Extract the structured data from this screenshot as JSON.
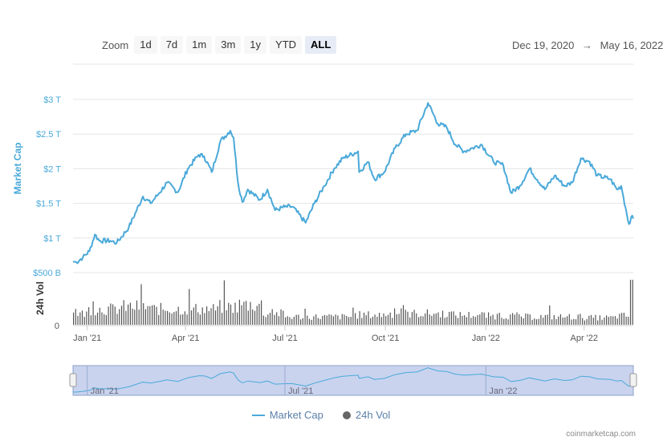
{
  "zoom": {
    "label": "Zoom",
    "buttons": [
      "1d",
      "7d",
      "1m",
      "3m",
      "1y",
      "YTD",
      "ALL"
    ],
    "active": "ALL"
  },
  "range": {
    "from": "Dec 19, 2020",
    "arrow": "→",
    "to": "May 16, 2022"
  },
  "legend": {
    "market_cap": "Market Cap",
    "volume": "24h Vol"
  },
  "credit": "coinmarketcap.com",
  "colors": {
    "market_cap": "#4aa9d9",
    "volume": "#555555",
    "navigator_fill": "#c9d3ee"
  },
  "chart_data": [
    {
      "type": "line",
      "title": "",
      "xlabel": "",
      "ylabel": "Market Cap",
      "x_tick_labels": [
        "Jan '21",
        "Apr '21",
        "Jul '21",
        "Oct '21",
        "Jan '22",
        "Apr '22"
      ],
      "y_tick_labels": [
        "$500 B",
        "$1 T",
        "$1.5 T",
        "$2 T",
        "$2.5 T",
        "$3 T"
      ],
      "y_ticks": [
        500,
        1000,
        1500,
        2000,
        2500,
        3000
      ],
      "ylim": [
        500,
        3000
      ],
      "xlim": [
        "2020-12-19",
        "2022-05-16"
      ],
      "series": [
        {
          "name": "Market Cap",
          "unit": "USD billions",
          "points": [
            [
              "2020-12-19",
              660
            ],
            [
              "2020-12-22",
              650
            ],
            [
              "2020-12-28",
              720
            ],
            [
              "2021-01-03",
              810
            ],
            [
              "2021-01-08",
              1050
            ],
            [
              "2021-01-12",
              960
            ],
            [
              "2021-01-22",
              960
            ],
            [
              "2021-01-28",
              930
            ],
            [
              "2021-02-08",
              1150
            ],
            [
              "2021-02-21",
              1600
            ],
            [
              "2021-02-28",
              1500
            ],
            [
              "2021-03-08",
              1650
            ],
            [
              "2021-03-15",
              1800
            ],
            [
              "2021-03-25",
              1660
            ],
            [
              "2021-04-03",
              2000
            ],
            [
              "2021-04-13",
              2200
            ],
            [
              "2021-04-18",
              2180
            ],
            [
              "2021-04-25",
              1950
            ],
            [
              "2021-05-03",
              2400
            ],
            [
              "2021-05-12",
              2550
            ],
            [
              "2021-05-15",
              2450
            ],
            [
              "2021-05-19",
              1800
            ],
            [
              "2021-05-23",
              1520
            ],
            [
              "2021-05-28",
              1700
            ],
            [
              "2021-06-08",
              1550
            ],
            [
              "2021-06-15",
              1700
            ],
            [
              "2021-06-22",
              1400
            ],
            [
              "2021-07-01",
              1450
            ],
            [
              "2021-07-08",
              1450
            ],
            [
              "2021-07-20",
              1220
            ],
            [
              "2021-07-28",
              1500
            ],
            [
              "2021-08-06",
              1750
            ],
            [
              "2021-08-15",
              2000
            ],
            [
              "2021-08-23",
              2150
            ],
            [
              "2021-09-06",
              2250
            ],
            [
              "2021-09-07",
              1950
            ],
            [
              "2021-09-15",
              2100
            ],
            [
              "2021-09-21",
              1850
            ],
            [
              "2021-09-30",
              1950
            ],
            [
              "2021-10-10",
              2300
            ],
            [
              "2021-10-20",
              2500
            ],
            [
              "2021-10-30",
              2550
            ],
            [
              "2021-11-09",
              2950
            ],
            [
              "2021-11-18",
              2650
            ],
            [
              "2021-11-26",
              2600
            ],
            [
              "2021-12-04",
              2350
            ],
            [
              "2021-12-12",
              2250
            ],
            [
              "2021-12-20",
              2300
            ],
            [
              "2021-12-28",
              2350
            ],
            [
              "2022-01-08",
              2100
            ],
            [
              "2022-01-17",
              2050
            ],
            [
              "2022-01-24",
              1650
            ],
            [
              "2022-02-01",
              1750
            ],
            [
              "2022-02-10",
              2000
            ],
            [
              "2022-02-24",
              1700
            ],
            [
              "2022-03-05",
              1900
            ],
            [
              "2022-03-14",
              1750
            ],
            [
              "2022-03-21",
              1800
            ],
            [
              "2022-03-29",
              2150
            ],
            [
              "2022-04-06",
              2100
            ],
            [
              "2022-04-13",
              1900
            ],
            [
              "2022-04-25",
              1850
            ],
            [
              "2022-05-01",
              1700
            ],
            [
              "2022-05-05",
              1750
            ],
            [
              "2022-05-10",
              1350
            ],
            [
              "2022-05-12",
              1200
            ],
            [
              "2022-05-14",
              1300
            ],
            [
              "2022-05-16",
              1280
            ]
          ]
        }
      ]
    },
    {
      "type": "bar",
      "xlabel": "",
      "ylabel": "24h Vol",
      "y_tick_labels": [
        "0"
      ],
      "xlim": [
        "2020-12-19",
        "2022-05-16"
      ],
      "series": [
        {
          "name": "24h Vol",
          "unit": "relative to the tallest bar",
          "level_by_period": [
            [
              "2020-12-19",
              0.25
            ],
            [
              "2021-01-01",
              0.35
            ],
            [
              "2021-02-01",
              0.4
            ],
            [
              "2021-03-01",
              0.35
            ],
            [
              "2021-04-01",
              0.35
            ],
            [
              "2021-05-01",
              0.4
            ],
            [
              "2021-05-20",
              0.45
            ],
            [
              "2021-06-10",
              0.25
            ],
            [
              "2021-07-01",
              0.18
            ],
            [
              "2021-08-01",
              0.18
            ],
            [
              "2021-09-01",
              0.22
            ],
            [
              "2021-10-01",
              0.25
            ],
            [
              "2021-11-01",
              0.25
            ],
            [
              "2021-12-01",
              0.22
            ],
            [
              "2022-01-01",
              0.2
            ],
            [
              "2022-02-01",
              0.18
            ],
            [
              "2022-03-01",
              0.18
            ],
            [
              "2022-04-01",
              0.16
            ],
            [
              "2022-05-01",
              0.2
            ],
            [
              "2022-05-12",
              0.85
            ]
          ]
        }
      ]
    }
  ],
  "navigator": {
    "x_tick_labels": [
      "Jan '21",
      "Jul '21",
      "Jan '22"
    ]
  }
}
